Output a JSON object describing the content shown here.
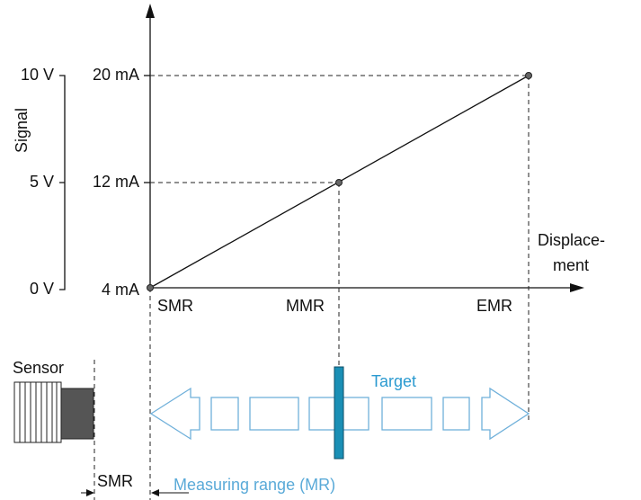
{
  "axes": {
    "y_label": "Signal",
    "x_label_lines": [
      "Displace-",
      "ment"
    ]
  },
  "voltage_ticks": [
    "10 V",
    "5 V",
    "0 V"
  ],
  "current_ticks": [
    "20 mA",
    "12 mA",
    "4 mA"
  ],
  "positions": [
    "SMR",
    "MMR",
    "EMR"
  ],
  "sensor": {
    "label": "Sensor",
    "offset_label": "SMR"
  },
  "target": {
    "label": "Target",
    "range_label": "Measuring range (MR)"
  }
}
